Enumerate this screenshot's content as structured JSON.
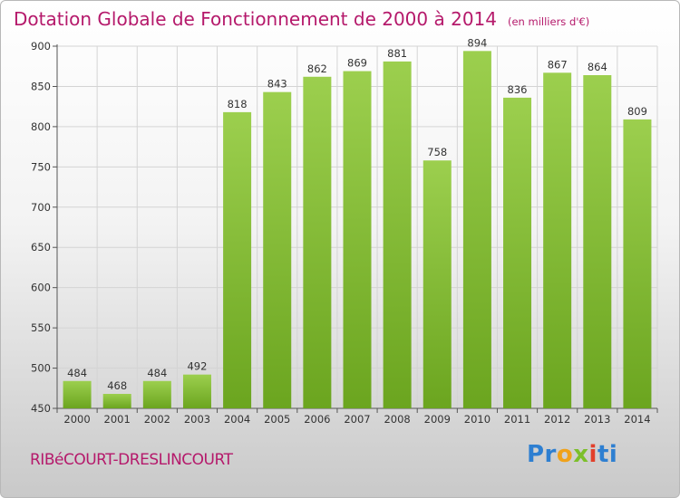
{
  "chart_data": {
    "type": "bar",
    "title": "Dotation Globale de Fonctionnement de 2000 à 2014",
    "subtitle": "(en milliers d'€)",
    "categories": [
      "2000",
      "2001",
      "2002",
      "2003",
      "2004",
      "2005",
      "2006",
      "2007",
      "2008",
      "2009",
      "2010",
      "2011",
      "2012",
      "2013",
      "2014"
    ],
    "values": [
      484,
      468,
      484,
      492,
      818,
      843,
      862,
      869,
      881,
      758,
      894,
      836,
      867,
      864,
      809
    ],
    "ylim": [
      450,
      900
    ],
    "yticks": [
      450,
      500,
      550,
      600,
      650,
      700,
      750,
      800,
      850,
      900
    ],
    "xlabel": "",
    "ylabel": "",
    "grid": true
  },
  "footer": {
    "commune": "RIBéCOURT-DRESLINCOURT"
  },
  "brand": {
    "name": "Proxiti",
    "letters": [
      "Pr",
      "o",
      "x",
      "i",
      "ti"
    ]
  },
  "colors": {
    "title": "#b5196b",
    "bar_light": "#9ccf4e",
    "bar_dark": "#6ba51f",
    "grid": "#d4d4d4"
  }
}
